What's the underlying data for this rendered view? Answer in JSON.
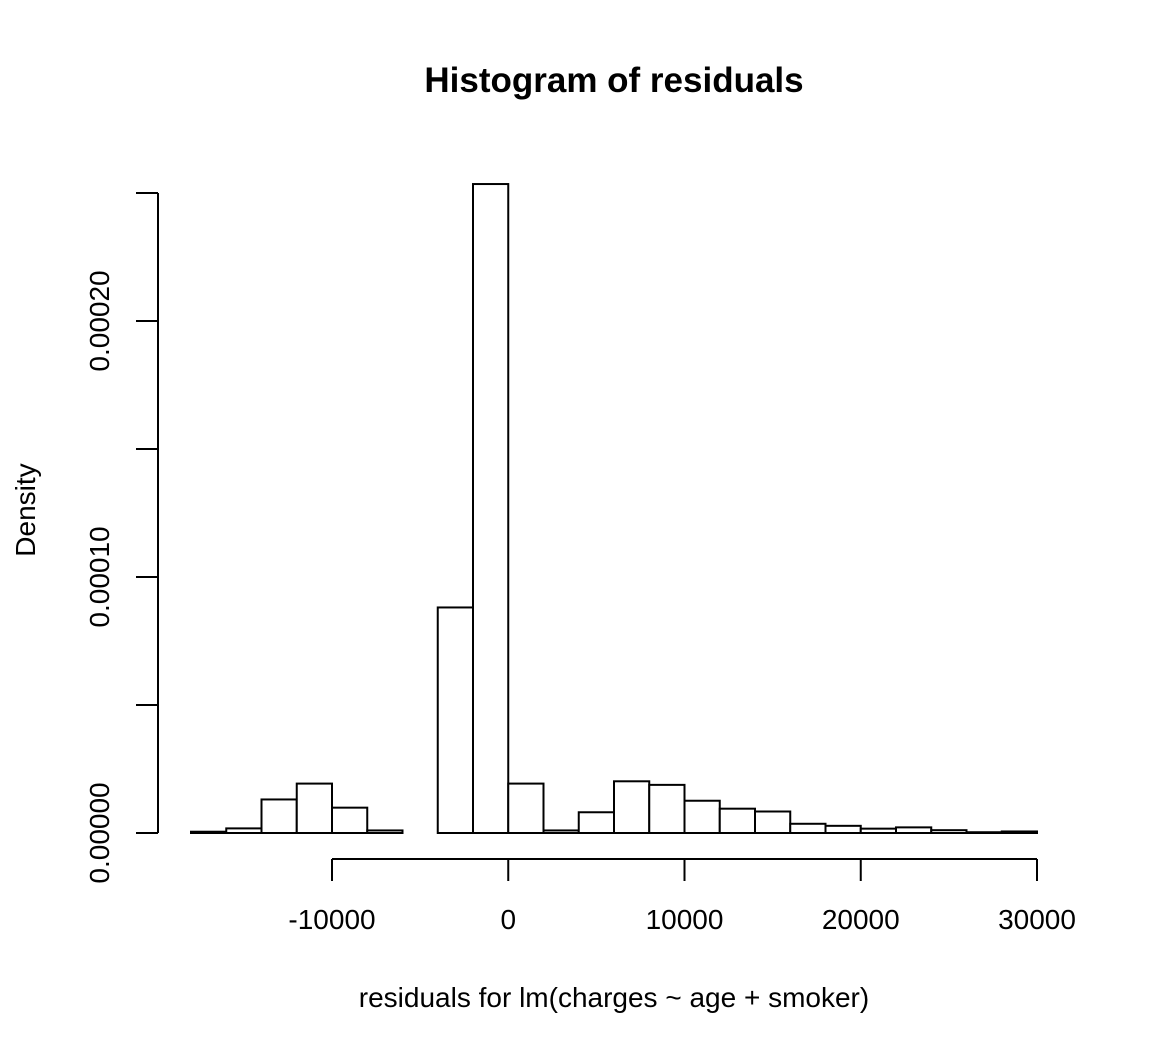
{
  "chart_data": {
    "type": "bar",
    "title": "Histogram of residuals",
    "xlabel": "residuals for lm(charges ~ age + smoker)",
    "ylabel": "Density",
    "bin_edges": [
      -18000,
      -16000,
      -14000,
      -12000,
      -10000,
      -8000,
      -6000,
      -4000,
      -2000,
      0,
      2000,
      4000,
      6000,
      8000,
      10000,
      12000,
      14000,
      16000,
      18000,
      20000,
      22000,
      24000,
      26000,
      28000,
      30000
    ],
    "values": [
      5e-07,
      1.8e-06,
      1.31e-05,
      1.93e-05,
      9.9e-06,
      1e-06,
      0,
      8.81e-05,
      0.0002535,
      1.93e-05,
      1e-06,
      8.1e-06,
      2.02e-05,
      1.88e-05,
      1.26e-05,
      9.5e-06,
      8.4e-06,
      3.6e-06,
      2.8e-06,
      1.7e-06,
      2.2e-06,
      1.1e-06,
      3e-07,
      6e-07
    ],
    "xlim": [
      -18000,
      30000
    ],
    "ylim": [
      0,
      0.00025
    ],
    "x_ticks": [
      -10000,
      0,
      10000,
      20000,
      30000
    ],
    "x_tick_labels": [
      "-10000",
      "0",
      "10000",
      "20000",
      "30000"
    ],
    "y_ticks": [
      0,
      5e-05,
      0.0001,
      0.00015,
      0.0002,
      0.00025
    ],
    "y_tick_labels": [
      "0.00000",
      "0.00010",
      "0.00020"
    ],
    "y_labeled_ticks": [
      0,
      0.0001,
      0.0002
    ],
    "grid": false,
    "legend": "none"
  }
}
